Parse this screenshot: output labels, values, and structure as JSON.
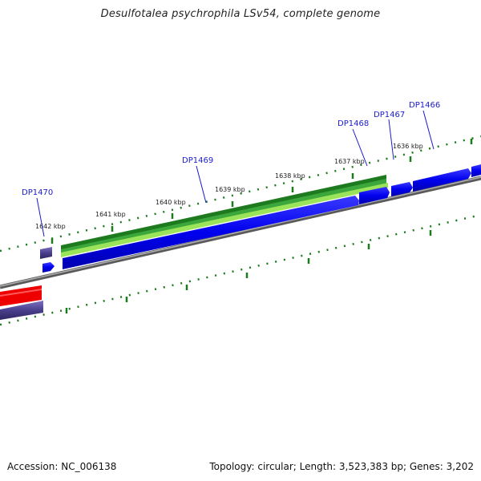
{
  "title": "Desulfotalea psychrophila LSv54, complete genome",
  "footer": {
    "accession": "Accession: NC_006138",
    "summary": "Topology: circular; Length: 3,523,383 bp; Genes: 3,202"
  },
  "scale_labels": [
    "1642 kbp",
    "1641 kbp",
    "1640 kbp",
    "1639 kbp",
    "1638 kbp",
    "1637 kbp",
    "1636 kbp"
  ],
  "gene_labels": [
    "DP1470",
    "DP1469",
    "DP1468",
    "DP1467",
    "DP1466"
  ],
  "colors": {
    "forward_cds": "#0000ee",
    "gene_dark_green": "#1e7a1e",
    "gene_light_green": "#9be35a",
    "reverse_purple": "#4a3f8c",
    "reverse_red": "#ee0000",
    "backbone": "#808080",
    "tick": "#1d7a1d",
    "label_blue": "#1a1acc"
  }
}
